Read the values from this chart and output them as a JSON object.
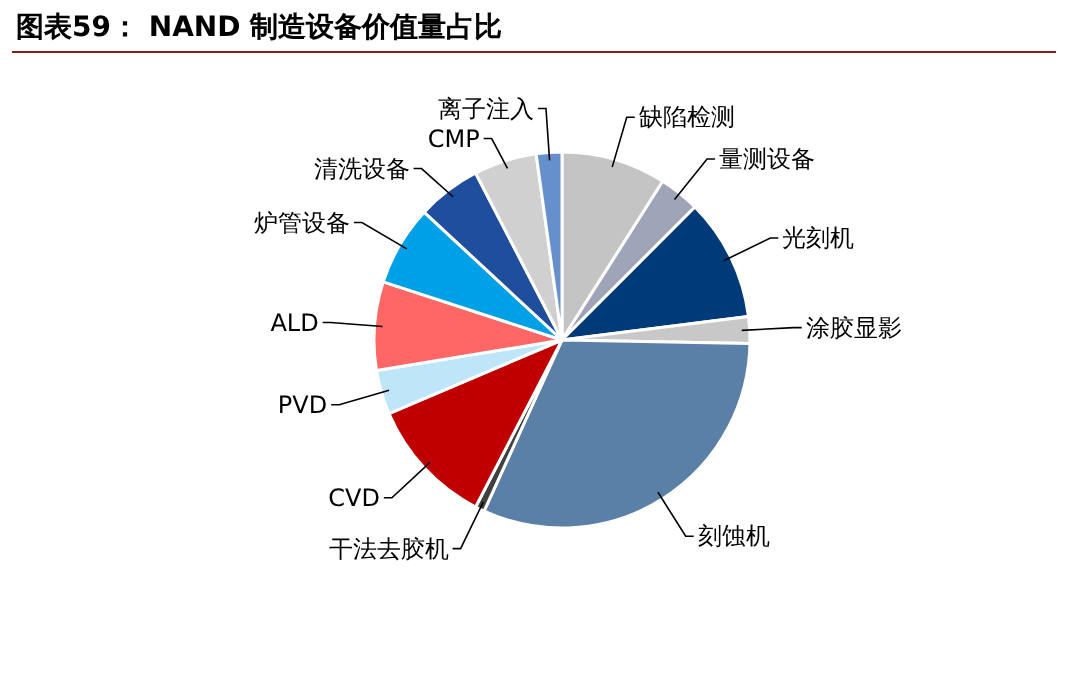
{
  "chart_data": {
    "type": "pie",
    "title": "图表59： NAND 制造设备价值量占比",
    "categories": [
      "缺陷检测",
      "量测设备",
      "光刻机",
      "涂胶显影",
      "刻蚀机",
      "干法去胶机",
      "CVD",
      "PVD",
      "ALD",
      "炉管设备",
      "清洗设备",
      "CMP",
      "离子注入"
    ],
    "values": [
      9,
      3.5,
      10.5,
      2.3,
      31.5,
      0.8,
      11,
      3.8,
      7.6,
      6.9,
      5.5,
      5.4,
      2.2
    ],
    "colors": [
      "#c4c4c4",
      "#a0a4b8",
      "#003a78",
      "#c8c8c8",
      "#5b80a8",
      "#404040",
      "#c00000",
      "#bfe6f8",
      "#ff6666",
      "#00a0e6",
      "#1f4e9c",
      "#d0d0d0",
      "#6690cc"
    ]
  }
}
